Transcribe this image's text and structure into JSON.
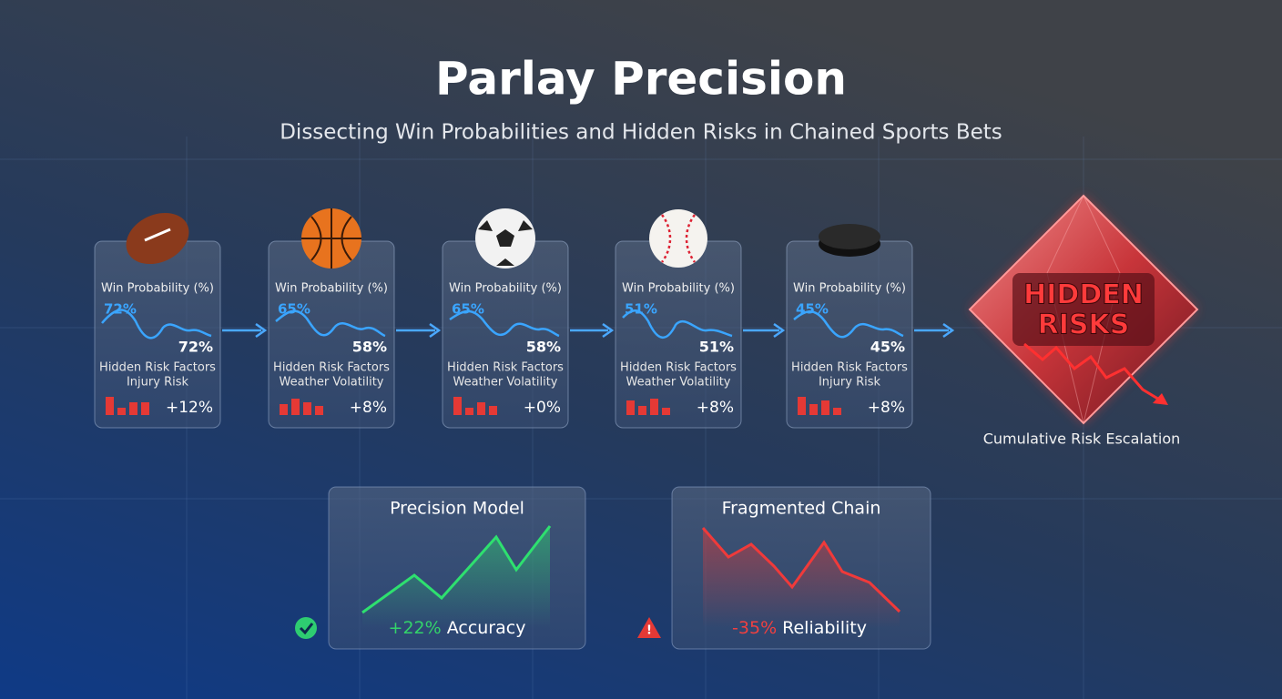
{
  "header": {
    "title": "Parlay Precision",
    "subtitle": "Dissecting Win Probabilities and Hidden Risks in Chained Sports Bets"
  },
  "legs": [
    {
      "prob_label": "Win Probability (%)",
      "prob_start": "72%",
      "prob_end": "72%",
      "risk_label": "Hidden Risk Factors",
      "risk_type": "Injury Risk",
      "risk_change": "+12%"
    },
    {
      "prob_label": "Win Probability (%)",
      "prob_start": "65%",
      "prob_end": "58%",
      "risk_label": "Hidden Risk Factors",
      "risk_type": "Weather Volatility",
      "risk_change": "+8%"
    },
    {
      "prob_label": "Win Probability (%)",
      "prob_start": "65%",
      "prob_end": "58%",
      "risk_label": "Hidden Risk Factors",
      "risk_type": "Weather Volatility",
      "risk_change": "+0%"
    },
    {
      "prob_label": "Win Probability (%)",
      "prob_start": "51%",
      "prob_end": "51%",
      "risk_label": "Hidden Risk Factors",
      "risk_type": "Weather Volatility",
      "risk_change": "+8%"
    },
    {
      "prob_label": "Win Probability (%)",
      "prob_start": "45%",
      "prob_end": "45%",
      "risk_label": "Hidden Risk Factors",
      "risk_type": "Injury Risk",
      "risk_change": "+8%"
    }
  ],
  "hidden_risks": {
    "lines": [
      "HIDDEN",
      "RISKS"
    ],
    "caption": "Cumulative Risk Escalation"
  },
  "panels": [
    {
      "title": "Precision Model",
      "change": "+22%",
      "metric": "Accuracy"
    },
    {
      "title": "Fragmented Chain",
      "change": "-35%",
      "metric": "Reliability"
    }
  ]
}
